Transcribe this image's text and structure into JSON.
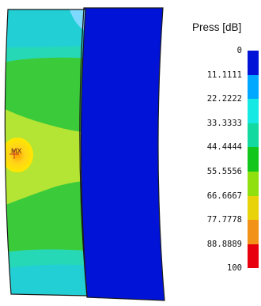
{
  "legend": {
    "title": "Press [dB]",
    "labels": [
      "0",
      "11.1111",
      "22.2222",
      "33.3333",
      "44.4444",
      "55.5556",
      "66.6667",
      "77.7778",
      "88.8889",
      "100"
    ],
    "colors": [
      "#0013d6",
      "#00a8ff",
      "#16e9e3",
      "#12d9a0",
      "#12c61c",
      "#90e010",
      "#e8d20a",
      "#f29318",
      "#e8000c"
    ]
  },
  "plot": {
    "marker_label": "MX",
    "colors": {
      "background_fill": "#27d8b6",
      "upper_band": "#22cfd4",
      "green_band": "#3bcb3a",
      "yellow_green_region": "#b4e434",
      "hotspot": "#ffe100",
      "right_panel": "#0013d6",
      "outline": "#1a1a1a"
    }
  }
}
